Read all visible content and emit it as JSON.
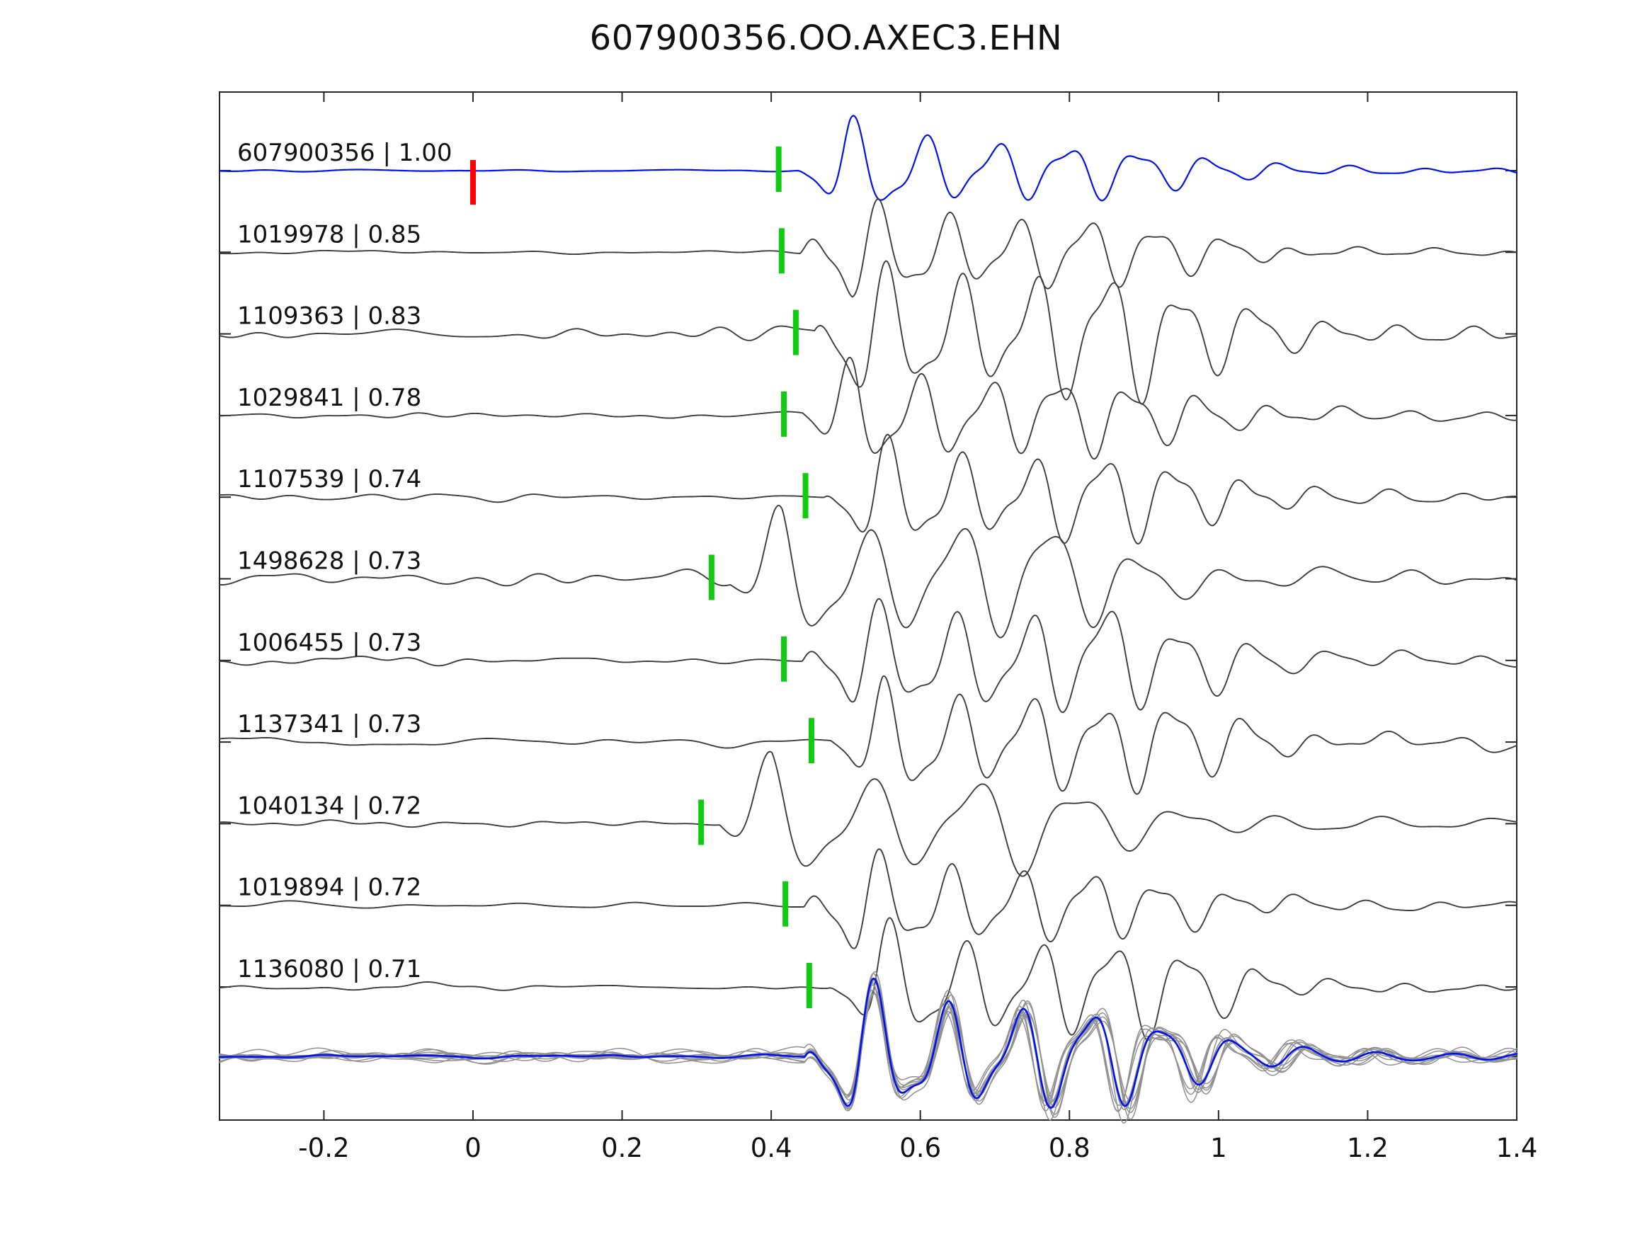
{
  "title": "607900356.OO.AXEC3.EHN",
  "chart_data": {
    "type": "line",
    "title": "607900356.OO.AXEC3.EHN",
    "xlabel": "",
    "ylabel": "",
    "grid": false,
    "legend": null,
    "xlim": [
      -0.34,
      1.4
    ],
    "xticks": [
      -0.2,
      0,
      0.2,
      0.4,
      0.6,
      0.8,
      1,
      1.2,
      1.4
    ],
    "xtick_labels": [
      "-0.2",
      "0",
      "0.2",
      "0.4",
      "0.6",
      "0.8",
      "1",
      "1.2",
      "1.4"
    ],
    "colors": {
      "template_trace": "#0011ee",
      "match_trace": "#3c3c3c",
      "pick_marker": "#10cc10",
      "template_pick_marker": "#ff0000",
      "overlay_trace": "#909090",
      "overlay_stack": "#0011ee",
      "axis": "#262626",
      "text": "#111111"
    },
    "n_traces": 11,
    "traces": [
      {
        "id": "607900356",
        "score": "1.00",
        "label": "607900356 | 1.00",
        "pick_time": 0.41,
        "template_pick_time": 0.0,
        "is_template": true,
        "seed": 3,
        "noise": 2,
        "amp": 52,
        "freq": 10.5,
        "phase": 0.9,
        "coda": 0.25,
        "tail": 0.1
      },
      {
        "id": "1019978",
        "score": "0.85",
        "label": "1019978 | 0.85",
        "pick_time": 0.414,
        "seed": 12,
        "noise": 5,
        "amp": 58,
        "freq": 10.8,
        "phase": 0.2,
        "coda": 0.3,
        "tail": 0.1
      },
      {
        "id": "1109363",
        "score": "0.83",
        "label": "1109363 | 0.83",
        "pick_time": 0.433,
        "seed": 23,
        "noise": 9,
        "amp": 60,
        "freq": 10.2,
        "phase": 0.5,
        "coda": 0.6,
        "tail": 0.3,
        "burst": [
          0.0,
          0.42,
          2.4
        ]
      },
      {
        "id": "1029841",
        "score": "0.78",
        "label": "1029841 | 0.78",
        "pick_time": 0.417,
        "seed": 34,
        "noise": 6,
        "amp": 58,
        "freq": 10.6,
        "phase": 1.2,
        "coda": 0.35,
        "tail": 0.12
      },
      {
        "id": "1107539",
        "score": "0.74",
        "label": "1107539 | 0.74",
        "pick_time": 0.446,
        "seed": 45,
        "noise": 7,
        "amp": 60,
        "freq": 10.4,
        "phase": 0.7,
        "coda": 0.4,
        "tail": 0.15
      },
      {
        "id": "1498628",
        "score": "0.73",
        "label": "1498628 | 0.73",
        "pick_time": 0.32,
        "seed": 56,
        "noise": 11,
        "amp": 66,
        "freq": 8.2,
        "phase": 1.5,
        "coda": 0.45,
        "tail": 0.2
      },
      {
        "id": "1006455",
        "score": "0.73",
        "label": "1006455 | 0.73",
        "pick_time": 0.417,
        "seed": 67,
        "noise": 9,
        "amp": 58,
        "freq": 10.0,
        "phase": 0.4,
        "coda": 0.5,
        "tail": 0.2
      },
      {
        "id": "1137341",
        "score": "0.73",
        "label": "1137341 | 0.73",
        "pick_time": 0.454,
        "seed": 78,
        "noise": 8,
        "amp": 57,
        "freq": 10.3,
        "phase": 1.0,
        "coda": 0.45,
        "tail": 0.18
      },
      {
        "id": "1040134",
        "score": "0.72",
        "label": "1040134 | 0.72",
        "pick_time": 0.306,
        "seed": 89,
        "noise": 6,
        "amp": 68,
        "freq": 7.2,
        "phase": 1.6,
        "coda": 0.35,
        "tail": 0.15
      },
      {
        "id": "1019894",
        "score": "0.72",
        "label": "1019894 | 0.72",
        "pick_time": 0.419,
        "seed": 98,
        "noise": 5,
        "amp": 57,
        "freq": 10.7,
        "phase": 0.3,
        "coda": 0.3,
        "tail": 0.12
      },
      {
        "id": "1136080",
        "score": "0.71",
        "label": "1136080 | 0.71",
        "pick_time": 0.451,
        "seed": 107,
        "noise": 6,
        "amp": 60,
        "freq": 10.1,
        "phase": 0.8,
        "coda": 0.45,
        "tail": 0.15
      }
    ],
    "overlay": {
      "count": 10,
      "aligned_pick": 0.42,
      "has_stack": true
    }
  }
}
